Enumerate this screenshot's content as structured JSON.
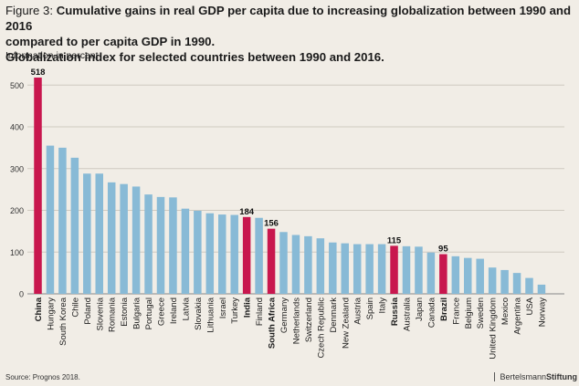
{
  "header": {
    "figure_prefix": "Figure 3:",
    "title_line1": "Cumulative gains in real GDP per capita due to increasing globalization between 1990 and 2016",
    "title_line2": "compared to per capita GDP in 1990.",
    "title_line3": "Globalization index for selected countries between 1990 and 2016.",
    "subtitle": "Information in percent"
  },
  "footer": {
    "source": "Source: Prognos 2018.",
    "brand_regular": "Bertelsmann",
    "brand_bold": "Stiftung"
  },
  "colors": {
    "background": "#f1ede6",
    "bar_default": "#88bad6",
    "bar_highlight": "#c8174e",
    "grid": "#cfcac0"
  },
  "chart_data": {
    "type": "bar",
    "ylim": [
      0,
      550
    ],
    "yticks": [
      0,
      100,
      200,
      300,
      400,
      500
    ],
    "categories": [
      "China",
      "Hungary",
      "South Korea",
      "Chile",
      "Poland",
      "Slovenia",
      "Romania",
      "Estonia",
      "Bulgaria",
      "Portugal",
      "Greece",
      "Ireland",
      "Latvia",
      "Slovakia",
      "Lithuania",
      "Israel",
      "Turkey",
      "India",
      "Finland",
      "South Africa",
      "Germany",
      "Netherlands",
      "Switzerland",
      "Czech Republic",
      "Denmark",
      "New Zealand",
      "Austria",
      "Spain",
      "Italy",
      "Russia",
      "Australia",
      "Japan",
      "Canada",
      "Brazil",
      "France",
      "Belgium",
      "Sweden",
      "United Kingdom",
      "Mexico",
      "Argentina",
      "USA",
      "Norway"
    ],
    "values": [
      518,
      355,
      350,
      326,
      288,
      288,
      267,
      263,
      257,
      238,
      232,
      231,
      204,
      199,
      193,
      190,
      189,
      184,
      182,
      156,
      148,
      141,
      138,
      133,
      123,
      121,
      119,
      119,
      119,
      115,
      114,
      113,
      99,
      95,
      90,
      86,
      84,
      63,
      57,
      50,
      38,
      22
    ],
    "highlighted": [
      "China",
      "India",
      "South Africa",
      "Russia",
      "Brazil"
    ],
    "data_labels": {
      "China": "518",
      "India": "184",
      "South Africa": "156",
      "Russia": "115",
      "Brazil": "95"
    }
  }
}
